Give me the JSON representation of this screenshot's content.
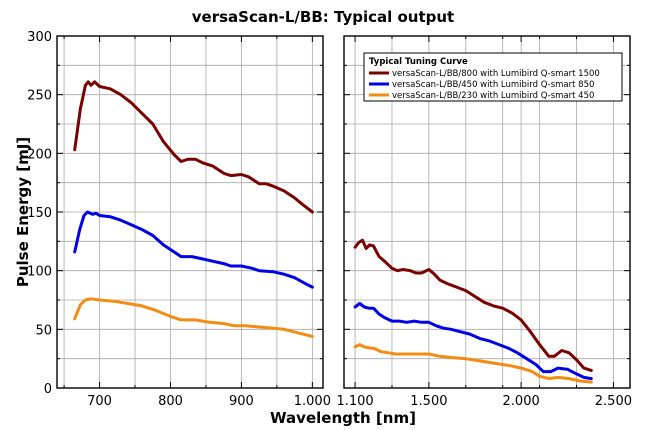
{
  "chart_data": {
    "type": "line",
    "title": "versaScan-L/BB: Typical output",
    "xlabel": "Wavelength [nm]",
    "ylabel": "Pulse Energy [mJ]",
    "ylim": [
      0,
      300
    ],
    "yticks": [
      0,
      50,
      100,
      150,
      200,
      250,
      300
    ],
    "grid": true,
    "legend": {
      "title": "Typical Tuning Curve",
      "placement": "top-right of right panel"
    },
    "panels": [
      {
        "name": "left",
        "xlim": [
          640,
          1015
        ],
        "xticks": [
          700,
          800,
          900,
          1000
        ],
        "xticklabels": [
          "700",
          "800",
          "900",
          "1.000"
        ],
        "minor_xticks": [
          650,
          750,
          850,
          950
        ]
      },
      {
        "name": "right",
        "xlim": [
          1040,
          2590
        ],
        "xticks": [
          1100,
          1500,
          2000,
          2500
        ],
        "xticklabels": [
          "1.100",
          "1.500",
          "2.000",
          "2.500"
        ],
        "minor_xticks": [
          1300,
          1700,
          1900,
          2100,
          2300
        ]
      }
    ],
    "series": [
      {
        "name": "versaScan-L/BB/800 with Lumibird Q-smart 1500",
        "color": "#7a0000",
        "left": [
          [
            665,
            203
          ],
          [
            673,
            238
          ],
          [
            680,
            258
          ],
          [
            684,
            261
          ],
          [
            688,
            258
          ],
          [
            693,
            261
          ],
          [
            700,
            257
          ],
          [
            715,
            255
          ],
          [
            730,
            250
          ],
          [
            745,
            243
          ],
          [
            760,
            234
          ],
          [
            775,
            225
          ],
          [
            790,
            210
          ],
          [
            805,
            199
          ],
          [
            815,
            193
          ],
          [
            825,
            195
          ],
          [
            835,
            195
          ],
          [
            845,
            192
          ],
          [
            860,
            189
          ],
          [
            875,
            183
          ],
          [
            885,
            181
          ],
          [
            900,
            182
          ],
          [
            910,
            180
          ],
          [
            925,
            174
          ],
          [
            935,
            174
          ],
          [
            945,
            172
          ],
          [
            960,
            168
          ],
          [
            975,
            162
          ],
          [
            985,
            157
          ],
          [
            1000,
            150
          ]
        ],
        "right": [
          [
            1100,
            120
          ],
          [
            1120,
            124
          ],
          [
            1140,
            126
          ],
          [
            1160,
            119
          ],
          [
            1180,
            122
          ],
          [
            1200,
            121
          ],
          [
            1230,
            112
          ],
          [
            1260,
            108
          ],
          [
            1300,
            102
          ],
          [
            1330,
            100
          ],
          [
            1360,
            101
          ],
          [
            1400,
            100
          ],
          [
            1430,
            98
          ],
          [
            1460,
            98
          ],
          [
            1500,
            101
          ],
          [
            1530,
            97
          ],
          [
            1560,
            92
          ],
          [
            1600,
            89
          ],
          [
            1650,
            86
          ],
          [
            1700,
            83
          ],
          [
            1750,
            78
          ],
          [
            1800,
            73
          ],
          [
            1850,
            70
          ],
          [
            1900,
            68
          ],
          [
            1950,
            64
          ],
          [
            2000,
            58
          ],
          [
            2050,
            48
          ],
          [
            2100,
            37
          ],
          [
            2150,
            27
          ],
          [
            2180,
            27
          ],
          [
            2220,
            32
          ],
          [
            2260,
            30
          ],
          [
            2300,
            24
          ],
          [
            2340,
            17
          ],
          [
            2380,
            15
          ]
        ]
      },
      {
        "name": "versaScan-L/BB/450 with Lumibird Q-smart 850",
        "color": "#0000e6",
        "left": [
          [
            665,
            116
          ],
          [
            672,
            135
          ],
          [
            678,
            147
          ],
          [
            683,
            150
          ],
          [
            690,
            148
          ],
          [
            695,
            149
          ],
          [
            700,
            147
          ],
          [
            715,
            146
          ],
          [
            730,
            143
          ],
          [
            745,
            139
          ],
          [
            760,
            135
          ],
          [
            775,
            130
          ],
          [
            790,
            122
          ],
          [
            805,
            116
          ],
          [
            815,
            112
          ],
          [
            830,
            112
          ],
          [
            845,
            110
          ],
          [
            860,
            108
          ],
          [
            875,
            106
          ],
          [
            885,
            104
          ],
          [
            900,
            104
          ],
          [
            915,
            102
          ],
          [
            925,
            100
          ],
          [
            945,
            99
          ],
          [
            960,
            97
          ],
          [
            975,
            94
          ],
          [
            990,
            89
          ],
          [
            1000,
            86
          ]
        ],
        "right": [
          [
            1100,
            69
          ],
          [
            1125,
            72
          ],
          [
            1150,
            69
          ],
          [
            1175,
            68
          ],
          [
            1200,
            68
          ],
          [
            1230,
            63
          ],
          [
            1260,
            60
          ],
          [
            1300,
            57
          ],
          [
            1340,
            57
          ],
          [
            1380,
            56
          ],
          [
            1420,
            57
          ],
          [
            1460,
            56
          ],
          [
            1500,
            56
          ],
          [
            1540,
            53
          ],
          [
            1580,
            51
          ],
          [
            1620,
            50
          ],
          [
            1670,
            48
          ],
          [
            1720,
            46
          ],
          [
            1780,
            42
          ],
          [
            1830,
            40
          ],
          [
            1880,
            37
          ],
          [
            1930,
            34
          ],
          [
            1980,
            30
          ],
          [
            2030,
            25
          ],
          [
            2080,
            20
          ],
          [
            2120,
            14
          ],
          [
            2160,
            14
          ],
          [
            2200,
            17
          ],
          [
            2250,
            16
          ],
          [
            2300,
            12
          ],
          [
            2340,
            9
          ],
          [
            2380,
            8
          ]
        ]
      },
      {
        "name": "versaScan-L/BB/230 with Lumibird Q-smart 450",
        "color": "#f28c12",
        "left": [
          [
            665,
            59
          ],
          [
            673,
            71
          ],
          [
            680,
            75
          ],
          [
            688,
            76
          ],
          [
            700,
            75
          ],
          [
            720,
            74
          ],
          [
            740,
            72
          ],
          [
            760,
            70
          ],
          [
            780,
            66
          ],
          [
            800,
            61
          ],
          [
            815,
            58
          ],
          [
            835,
            58
          ],
          [
            855,
            56
          ],
          [
            875,
            55
          ],
          [
            890,
            53
          ],
          [
            905,
            53
          ],
          [
            925,
            52
          ],
          [
            945,
            51
          ],
          [
            960,
            50
          ],
          [
            980,
            47
          ],
          [
            1000,
            44
          ]
        ],
        "right": [
          [
            1100,
            35
          ],
          [
            1125,
            37
          ],
          [
            1150,
            35
          ],
          [
            1180,
            34
          ],
          [
            1200,
            34
          ],
          [
            1240,
            31
          ],
          [
            1280,
            30
          ],
          [
            1320,
            29
          ],
          [
            1380,
            29
          ],
          [
            1440,
            29
          ],
          [
            1500,
            29
          ],
          [
            1560,
            27
          ],
          [
            1620,
            26
          ],
          [
            1700,
            25
          ],
          [
            1780,
            23
          ],
          [
            1860,
            21
          ],
          [
            1940,
            19
          ],
          [
            2000,
            17
          ],
          [
            2060,
            14
          ],
          [
            2100,
            10
          ],
          [
            2150,
            8
          ],
          [
            2200,
            9
          ],
          [
            2260,
            8
          ],
          [
            2320,
            6
          ],
          [
            2380,
            5
          ]
        ]
      }
    ]
  }
}
